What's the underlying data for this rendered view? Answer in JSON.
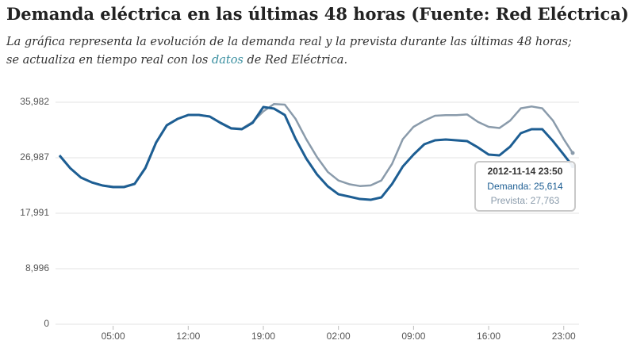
{
  "chart_data": {
    "type": "line",
    "title": "Demanda eléctrica en las últimas 48 horas (Fuente: Red Eléctrica)",
    "subtitle": {
      "before": "La gráfica representa la evolución de la demanda real y la prevista durante las últimas 48 horas; se actualiza en tiempo real con los ",
      "link": "datos",
      "after": " de Red Eléctrica."
    },
    "x": [
      0,
      1,
      2,
      3,
      4,
      5,
      6,
      7,
      8,
      9,
      10,
      11,
      12,
      13,
      14,
      15,
      16,
      17,
      18,
      19,
      20,
      21,
      22,
      23,
      24,
      25,
      26,
      27,
      28,
      29,
      30,
      31,
      32,
      33,
      34,
      35,
      36,
      37,
      38,
      39,
      40,
      41,
      42,
      43,
      44,
      45,
      46,
      47,
      47.833
    ],
    "xlim": [
      0,
      47.833
    ],
    "xticks": [
      {
        "value": 5,
        "label": "05:00"
      },
      {
        "value": 12,
        "label": "12:00"
      },
      {
        "value": 19,
        "label": "19:00"
      },
      {
        "value": 26,
        "label": "02:00"
      },
      {
        "value": 33,
        "label": "09:00"
      },
      {
        "value": 40,
        "label": "16:00"
      },
      {
        "value": 47,
        "label": "23:00"
      }
    ],
    "ylim": [
      0,
      35982
    ],
    "yticks": [
      0,
      {
        "value": 8996,
        "label": "8,996"
      },
      {
        "value": 17991,
        "label": "17,991"
      },
      {
        "value": 26987,
        "label": "26,987"
      },
      {
        "value": 35982,
        "label": "35,982"
      }
    ],
    "grid": true,
    "series": [
      {
        "color": "#8a9bab",
        "values": [
          27300,
          25300,
          23800,
          23000,
          22500,
          22300,
          22300,
          22800,
          25400,
          29500,
          32300,
          33300,
          33900,
          33900,
          33700,
          32700,
          31800,
          31700,
          32800,
          34500,
          35700,
          35600,
          33300,
          30000,
          27100,
          24700,
          23300,
          22700,
          22400,
          22500,
          23300,
          26000,
          30000,
          32000,
          33000,
          33800,
          33900,
          33900,
          34000,
          32800,
          32000,
          31800,
          33000,
          35000,
          35300,
          35000,
          33000,
          30000,
          27763
        ]
      },
      {
        "color": "#1d5e93",
        "values": [
          27370,
          25300,
          23770,
          23000,
          22490,
          22230,
          22230,
          22740,
          25300,
          29430,
          32250,
          33280,
          33920,
          33920,
          33670,
          32640,
          31740,
          31610,
          32640,
          35210,
          34950,
          33920,
          30070,
          26860,
          24290,
          22360,
          21070,
          20690,
          20300,
          20170,
          20560,
          22740,
          25570,
          27500,
          29170,
          29810,
          29940,
          29810,
          29680,
          28660,
          27500,
          27370,
          28780,
          30970,
          31610,
          31610,
          29680,
          27500,
          25614
        ]
      }
    ],
    "tooltip": {
      "title": "2012-11-14 23:50",
      "items": [
        "Demanda: 25,614",
        "Prevista: 27,763"
      ]
    }
  }
}
